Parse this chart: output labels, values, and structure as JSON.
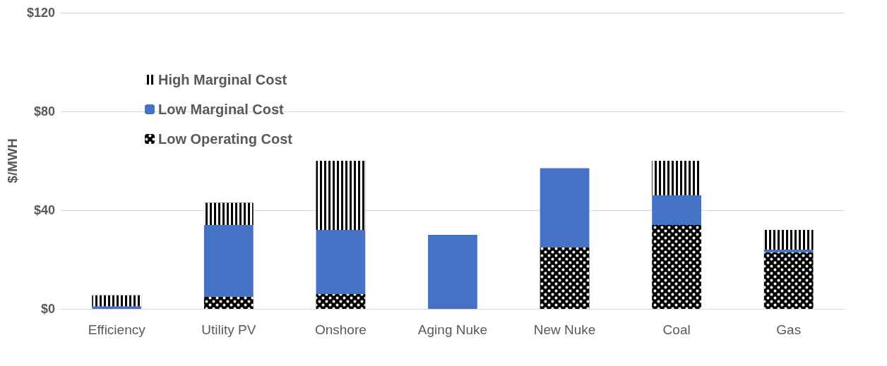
{
  "chart_data": {
    "type": "bar",
    "ylabel": "$/MWH",
    "stacked": true,
    "categories": [
      "Efficiency",
      "Utility PV",
      "Onshore",
      "Aging Nuke",
      "New Nuke",
      "Coal",
      "Gas"
    ],
    "series": [
      {
        "name": "Low Operating Cost",
        "color": "#000000",
        "values": [
          0,
          5,
          6,
          0,
          25,
          34,
          23
        ]
      },
      {
        "name": "Low Marginal Cost",
        "color": "#4472c4",
        "values": [
          1,
          29,
          26,
          30,
          32,
          12,
          1
        ]
      },
      {
        "name": "High Marginal Cost",
        "color": "#000000",
        "values": [
          4.5,
          9,
          28,
          0,
          0,
          14,
          8
        ]
      }
    ],
    "ylim": [
      0,
      120
    ],
    "yticks": [
      {
        "value": 0,
        "label": "$0"
      },
      {
        "value": 40,
        "label": "$40"
      },
      {
        "value": 80,
        "label": "$80"
      },
      {
        "value": 120,
        "label": "$120"
      }
    ],
    "grid": "y",
    "legend": "top left"
  }
}
